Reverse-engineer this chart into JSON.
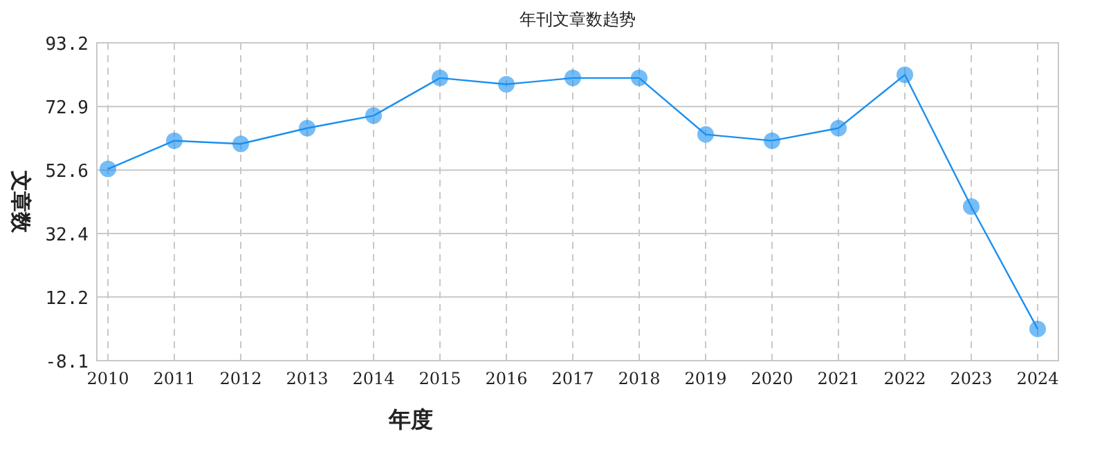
{
  "chart_data": {
    "type": "line",
    "title": "年刊文章数趋势",
    "xlabel": "年度",
    "ylabel": "文章数",
    "categories": [
      "2010",
      "2011",
      "2012",
      "2013",
      "2014",
      "2015",
      "2016",
      "2017",
      "2018",
      "2019",
      "2020",
      "2021",
      "2022",
      "2023",
      "2024"
    ],
    "series": [
      {
        "color": "#1a8ff0",
        "values": [
          53,
          62,
          61,
          66,
          70,
          82,
          80,
          82,
          82,
          64,
          62,
          66,
          83,
          41,
          2
        ]
      }
    ],
    "ylim": [
      -8.1,
      93.2
    ],
    "yticks": [
      -8.1,
      12.2,
      32.4,
      52.6,
      72.9,
      93.2
    ],
    "grid": true,
    "marker": "circle"
  }
}
